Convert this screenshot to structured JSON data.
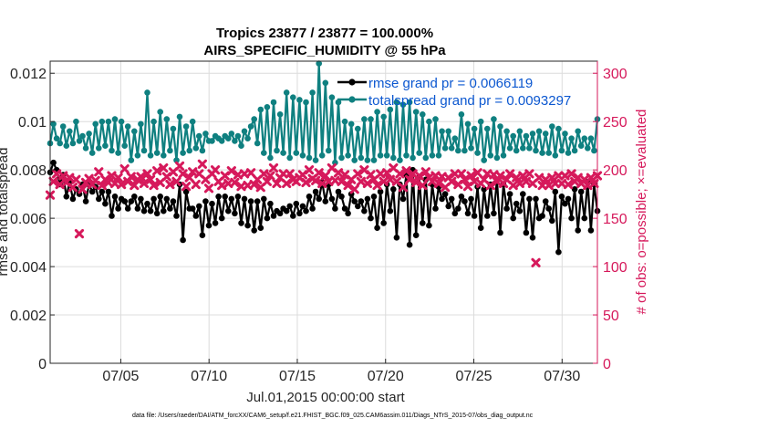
{
  "chart_data": {
    "type": "line",
    "title": "Tropics 23877 / 23877 = 100.000%",
    "subtitle": "AIRS_SPECIFIC_HUMIDITY @ 55 hPa",
    "xlabel": "Jul.01,2015 00:00:00 start",
    "ylabel": "rmse and totalspread",
    "ylabel_right": "# of obs: o=possible; ×=evaluated",
    "footnote": "data file: /Users/raeder/DAI/ATM_forcXX/CAM6_setup/f.e21.FHIST_BGC.f09_025.CAM6assim.011/Diags_NTrS_2015-07/obs_diag_output.nc",
    "x_range": [
      1.0,
      32.0
    ],
    "ylim": [
      0,
      0.0125
    ],
    "ylim_right": [
      0,
      312.5
    ],
    "y_ticks": [
      "0",
      "0.002",
      "0.004",
      "0.006",
      "0.008",
      "0.01",
      "0.012"
    ],
    "y_tick_values": [
      0,
      0.002,
      0.004,
      0.006,
      0.008,
      0.01,
      0.012
    ],
    "y_right_ticks": [
      "0",
      "50",
      "100",
      "150",
      "200",
      "250",
      "300"
    ],
    "y_right_tick_values": [
      0,
      50,
      100,
      150,
      200,
      250,
      300
    ],
    "x_ticks": [
      "07/05",
      "07/10",
      "07/15",
      "07/20",
      "07/25",
      "07/30"
    ],
    "x_tick_values": [
      5,
      10,
      15,
      20,
      25,
      30
    ],
    "legend": [
      {
        "label": "rmse grand pr = 0.0066119",
        "color": "#000000"
      },
      {
        "label": "totalspread grand pr = 0.0093297",
        "color": "#0f8080"
      }
    ],
    "series": [
      {
        "name": "rmse",
        "color": "#000000",
        "axis": "left",
        "values": [
          0.0079,
          0.0083,
          0.008,
          0.0074,
          0.0078,
          0.0069,
          0.0075,
          0.0068,
          0.0072,
          0.007,
          0.0074,
          0.0067,
          0.0074,
          0.0071,
          0.0073,
          0.0068,
          0.0071,
          0.0066,
          0.0071,
          0.0061,
          0.0069,
          0.0064,
          0.0068,
          0.0067,
          0.0064,
          0.0067,
          0.0069,
          0.0064,
          0.0068,
          0.0063,
          0.0066,
          0.0063,
          0.0068,
          0.0062,
          0.0069,
          0.0063,
          0.0068,
          0.0064,
          0.0067,
          0.0061,
          0.0074,
          0.0051,
          0.0071,
          0.0064,
          0.0064,
          0.0061,
          0.0065,
          0.0053,
          0.0067,
          0.0057,
          0.0066,
          0.0058,
          0.0069,
          0.006,
          0.0069,
          0.0063,
          0.0068,
          0.0062,
          0.0069,
          0.0058,
          0.0068,
          0.0057,
          0.0067,
          0.0055,
          0.0067,
          0.0056,
          0.0068,
          0.006,
          0.0066,
          0.0061,
          0.0063,
          0.0062,
          0.0064,
          0.0063,
          0.0065,
          0.0061,
          0.0066,
          0.0062,
          0.0065,
          0.0063,
          0.0069,
          0.0064,
          0.0071,
          0.0068,
          0.0075,
          0.0067,
          0.0074,
          0.0068,
          0.0064,
          0.0071,
          0.0069,
          0.0064,
          0.0062,
          0.007,
          0.0067,
          0.0065,
          0.0067,
          0.0063,
          0.0068,
          0.006,
          0.0069,
          0.0056,
          0.0071,
          0.0058,
          0.0074,
          0.0063,
          0.0072,
          0.0052,
          0.0074,
          0.0068,
          0.0078,
          0.0049,
          0.008,
          0.0053,
          0.0077,
          0.0058,
          0.0076,
          0.0057,
          0.0074,
          0.0064,
          0.0073,
          0.0068,
          0.007,
          0.0065,
          0.0068,
          0.0062,
          0.0064,
          0.0069,
          0.0067,
          0.0062,
          0.0068,
          0.0061,
          0.0073,
          0.0056,
          0.0072,
          0.0061,
          0.0074,
          0.0062,
          0.0076,
          0.0054,
          0.0074,
          0.0064,
          0.007,
          0.006,
          0.0066,
          0.0063,
          0.007,
          0.0054,
          0.0068,
          0.0052,
          0.0068,
          0.006,
          0.0061,
          0.0067,
          0.0064,
          0.0059,
          0.0071,
          0.0046,
          0.0069,
          0.0066,
          0.0068,
          0.006,
          0.0072,
          0.0055,
          0.0071,
          0.006,
          0.0075,
          0.0055,
          0.0074,
          0.0063
        ]
      },
      {
        "name": "totalspread",
        "color": "#0f8080",
        "axis": "left",
        "values": [
          0.0091,
          0.0099,
          0.0093,
          0.0091,
          0.0098,
          0.009,
          0.0096,
          0.0091,
          0.01,
          0.0092,
          0.0094,
          0.0089,
          0.0095,
          0.0087,
          0.0099,
          0.0089,
          0.01,
          0.009,
          0.01,
          0.0088,
          0.0101,
          0.0087,
          0.01,
          0.009,
          0.0098,
          0.0084,
          0.0096,
          0.0086,
          0.0099,
          0.0088,
          0.0112,
          0.0086,
          0.01,
          0.0087,
          0.0104,
          0.0086,
          0.0101,
          0.0088,
          0.0097,
          0.0084,
          0.0102,
          0.0087,
          0.0098,
          0.0088,
          0.01,
          0.0089,
          0.0094,
          0.0088,
          0.0095,
          0.0092,
          0.0092,
          0.0094,
          0.0093,
          0.0092,
          0.0094,
          0.0093,
          0.0095,
          0.0092,
          0.0094,
          0.009,
          0.0096,
          0.0093,
          0.0098,
          0.0101,
          0.0091,
          0.0105,
          0.0087,
          0.0106,
          0.0085,
          0.0108,
          0.0088,
          0.0103,
          0.0087,
          0.0112,
          0.0085,
          0.011,
          0.0087,
          0.0109,
          0.0086,
          0.0108,
          0.0085,
          0.0112,
          0.0084,
          0.0124,
          0.0086,
          0.0116,
          0.0088,
          0.011,
          0.0083,
          0.0108,
          0.0085,
          0.01,
          0.0086,
          0.0099,
          0.0084,
          0.0097,
          0.0085,
          0.0101,
          0.0084,
          0.0101,
          0.0084,
          0.0104,
          0.0086,
          0.0102,
          0.0086,
          0.0105,
          0.0085,
          0.0108,
          0.0084,
          0.0107,
          0.0086,
          0.0108,
          0.0085,
          0.0104,
          0.0087,
          0.0103,
          0.0085,
          0.01,
          0.0086,
          0.0101,
          0.0086,
          0.0096,
          0.0089,
          0.0096,
          0.0089,
          0.0093,
          0.0088,
          0.0103,
          0.0088,
          0.0099,
          0.0089,
          0.0097,
          0.0087,
          0.01,
          0.0084,
          0.0097,
          0.0086,
          0.0101,
          0.0085,
          0.0098,
          0.0086,
          0.0096,
          0.0089,
          0.0094,
          0.0088,
          0.0096,
          0.0089,
          0.0094,
          0.0089,
          0.0095,
          0.0088,
          0.0096,
          0.0087,
          0.0095,
          0.0087,
          0.0098,
          0.0086,
          0.0097,
          0.0088,
          0.0095,
          0.0087,
          0.0093,
          0.0088,
          0.0096,
          0.009,
          0.0093,
          0.0089,
          0.0093,
          0.0088,
          0.0101
        ]
      },
      {
        "name": "# of obs",
        "color": "#d6195b",
        "axis": "right",
        "marker": "x",
        "values": [
          174,
          188,
          196,
          185,
          194,
          187,
          192,
          182,
          190,
          134,
          180,
          187,
          191,
          185,
          189,
          198,
          184,
          190,
          187,
          194,
          186,
          192,
          185,
          201,
          188,
          193,
          184,
          190,
          193,
          186,
          196,
          190,
          184,
          199,
          187,
          202,
          193,
          185,
          198,
          188,
          204,
          196,
          183,
          192,
          198,
          185,
          196,
          206,
          190,
          181,
          196,
          200,
          188,
          184,
          194,
          186,
          199,
          187,
          195,
          183,
          196,
          184,
          197,
          185,
          190,
          182,
          196,
          188,
          194,
          202,
          186,
          192,
          196,
          186,
          196,
          190,
          188,
          192,
          195,
          187,
          200,
          191,
          189,
          197,
          186,
          194,
          188,
          202,
          189,
          197,
          188,
          195,
          184,
          190,
          180,
          196,
          188,
          200,
          186,
          195,
          190,
          184,
          196,
          188,
          197,
          190,
          202,
          188,
          196,
          182,
          199,
          190,
          196,
          187,
          194,
          184,
          198,
          192,
          188,
          194,
          186,
          193,
          182,
          192,
          188,
          196,
          185,
          196,
          190,
          183,
          194,
          188,
          197,
          186,
          190,
          196,
          184,
          195,
          188,
          194,
          186,
          190,
          196,
          184,
          192,
          186,
          194,
          188,
          196,
          186,
          104,
          192,
          184,
          190,
          184,
          192,
          186,
          194,
          186,
          194,
          185,
          196,
          188,
          192,
          186,
          190,
          184,
          192,
          186,
          194
        ]
      }
    ]
  }
}
